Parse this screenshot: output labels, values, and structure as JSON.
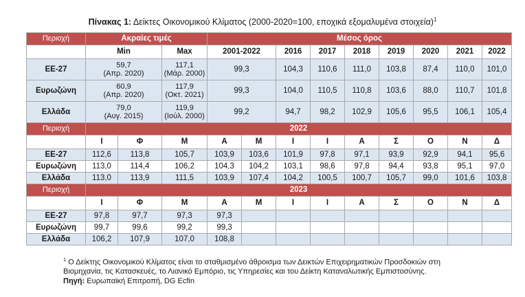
{
  "title": {
    "prefix": "Πίνακας 1:",
    "text": " Δείκτες Οικονομικού Κλίματος (2000-2020=100, εποχικά εξομαλυμένα στοιχεία)",
    "sup": "1"
  },
  "section1": {
    "area_label": "Περιοχή",
    "extremes_label": "Ακραίες τιμές",
    "mean_label": "Μέσος όρος",
    "min_label": "Min",
    "max_label": "Max",
    "years": [
      "2001-2022",
      "2016",
      "2017",
      "2018",
      "2019",
      "2020",
      "2021",
      "2022"
    ],
    "rows": [
      {
        "name": "ΕΕ-27",
        "min_val": "59,7",
        "min_date": "(Απρ. 2020)",
        "max_val": "117,1",
        "max_date": "(Μάρ. 2000)",
        "values": [
          "99,3",
          "104,3",
          "110,6",
          "111,0",
          "103,8",
          "87,4",
          "110,0",
          "101,0"
        ]
      },
      {
        "name": "Ευρωζώνη",
        "min_val": "60,9",
        "min_date": "(Απρ. 2020)",
        "max_val": "117,9",
        "max_date": "(Οκτ. 2021)",
        "values": [
          "99,3",
          "104,0",
          "110,5",
          "110,8",
          "103,6",
          "88,0",
          "110,7",
          "101,8"
        ]
      },
      {
        "name": "Ελλάδα",
        "min_val": "79,0",
        "min_date": "(Αυγ. 2015)",
        "max_val": "119,9",
        "max_date": "(Ιούλ. 2000)",
        "values": [
          "99,2",
          "94,7",
          "98,2",
          "102,9",
          "105,6",
          "95,5",
          "106,1",
          "105,4"
        ]
      }
    ]
  },
  "section2": {
    "area_label": "Περιοχή",
    "year": "2022",
    "months": [
      "Ι",
      "Φ",
      "Μ",
      "Α",
      "Μ",
      "Ι",
      "Ι",
      "Α",
      "Σ",
      "Ο",
      "Ν",
      "Δ"
    ],
    "rows": [
      {
        "name": "ΕΕ-27",
        "values": [
          "112,6",
          "113,8",
          "105,7",
          "103,9",
          "103,6",
          "101,9",
          "97,8",
          "97,1",
          "93,9",
          "92,9",
          "94,1",
          "95,6"
        ]
      },
      {
        "name": "Ευρωζώνη",
        "values": [
          "113,0",
          "114,4",
          "106,2",
          "104,3",
          "104,2",
          "103,1",
          "98,6",
          "97,8",
          "94,4",
          "93,8",
          "95,1",
          "97,0"
        ]
      },
      {
        "name": "Ελλάδα",
        "values": [
          "113,0",
          "113,9",
          "111,5",
          "103,9",
          "107,4",
          "104,2",
          "100,5",
          "100,7",
          "105,7",
          "99,0",
          "101,6",
          "103,8"
        ]
      }
    ]
  },
  "section3": {
    "area_label": "Περιοχή",
    "year": "2023",
    "months": [
      "Ι",
      "Φ",
      "Μ",
      "Α",
      "Μ",
      "Ι",
      "Ι",
      "Α",
      "Σ",
      "Ο",
      "Ν",
      "Δ"
    ],
    "rows": [
      {
        "name": "ΕΕ-27",
        "values": [
          "97,8",
          "97,7",
          "97,3",
          "97,3",
          "",
          "",
          "",
          "",
          "",
          "",
          "",
          ""
        ]
      },
      {
        "name": "Ευρωζώνη",
        "values": [
          "99,7",
          "99,6",
          "99,2",
          "99,3",
          "",
          "",
          "",
          "",
          "",
          "",
          "",
          ""
        ]
      },
      {
        "name": "Ελλάδα",
        "values": [
          "106,2",
          "107,9",
          "107,0",
          "108,8",
          "",
          "",
          "",
          "",
          "",
          "",
          "",
          ""
        ]
      }
    ]
  },
  "footnote": {
    "sup": "1",
    "line1": " Ο Δείκτης Οικονομικού Κλίματος είναι το σταθμισμένο άθροισμα των Δεικτών Επιχειρηματικών Προσδοκιών στη",
    "line2": "Βιομηχανία, τις Κατασκευές, το Λιανικό Εμπόριο, τις Υπηρεσίες και του Δείκτη Καταναλωτικής Εμπιστοσύνης.",
    "source_label": "Πηγή:",
    "source_text": " Ευρωπαϊκή Επιτροπή, DG Ecfin"
  }
}
